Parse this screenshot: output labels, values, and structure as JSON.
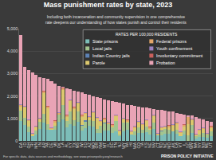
{
  "chart_data": {
    "type": "bar",
    "title": "Mass punishment rates by state, 2023",
    "subtitle": [
      "Including both incarceration and community supervision in one comprehensive",
      "rate deepens our understanding of how states punish and control their residents"
    ],
    "legend_title": "RATES PER 100,000 RESIDENTS",
    "annotations": [
      "For specific data, data sources and methodology, see www.prisonpolicy.org/research",
      "PRISON POLICY INITIATIVE"
    ],
    "categories": [
      "GA",
      "ID",
      "OH",
      "RI",
      "MN",
      "IN",
      "AR",
      "PA",
      "DE",
      "MI",
      "OK",
      "LA",
      "AL",
      "KY",
      "TX",
      "MS",
      "WI",
      "SD",
      "AZ",
      "MO",
      "OR",
      "NM",
      "MT",
      "FL",
      "SC",
      "TN",
      "NJ",
      "WY",
      "VA",
      "HI",
      "WA",
      "CO",
      "IA",
      "KS",
      "NE",
      "NV",
      "CT",
      "ND",
      "NC",
      "MD",
      "AK",
      "CA",
      "VT",
      "IL",
      "DC",
      "WV",
      "MA",
      "NY",
      "NH",
      "ME",
      "UT"
    ],
    "series": [
      {
        "name": "State prisons",
        "color": "#7cbdb8",
        "values": [
          890,
          700,
          380,
          230,
          300,
          520,
          800,
          480,
          500,
          490,
          860,
          960,
          590,
          760,
          660,
          840,
          460,
          560,
          690,
          640,
          360,
          340,
          460,
          470,
          370,
          410,
          200,
          430,
          480,
          280,
          250,
          370,
          340,
          400,
          290,
          520,
          250,
          240,
          320,
          310,
          420,
          330,
          200,
          300,
          0,
          350,
          110,
          180,
          180,
          140,
          220
        ]
      },
      {
        "name": "Local jails",
        "color": "#a3c48f",
        "values": [
          450,
          330,
          250,
          0,
          150,
          330,
          390,
          280,
          0,
          180,
          300,
          620,
          300,
          560,
          270,
          470,
          230,
          300,
          220,
          250,
          180,
          330,
          320,
          270,
          220,
          460,
          100,
          370,
          350,
          0,
          160,
          250,
          140,
          250,
          190,
          290,
          0,
          190,
          210,
          170,
          0,
          180,
          0,
          150,
          250,
          370,
          110,
          110,
          170,
          130,
          200
        ]
      },
      {
        "name": "Indian Country jails",
        "color": "#5d82b5",
        "values": [
          0,
          3,
          0,
          0,
          3,
          0,
          0,
          0,
          0,
          0,
          5,
          0,
          0,
          0,
          0,
          0,
          2,
          60,
          20,
          0,
          0,
          15,
          30,
          0,
          0,
          0,
          0,
          10,
          0,
          0,
          5,
          0,
          0,
          0,
          0,
          5,
          0,
          20,
          0,
          0,
          0,
          0,
          0,
          0,
          0,
          0,
          0,
          0,
          0,
          0,
          3
        ]
      },
      {
        "name": "Parole",
        "color": "#dcc86e",
        "values": [
          200,
          450,
          250,
          40,
          150,
          90,
          950,
          700,
          20,
          150,
          20,
          700,
          180,
          450,
          500,
          350,
          380,
          280,
          100,
          350,
          450,
          160,
          120,
          20,
          60,
          230,
          120,
          150,
          30,
          110,
          170,
          180,
          220,
          230,
          60,
          280,
          20,
          120,
          70,
          130,
          250,
          250,
          140,
          200,
          500,
          200,
          30,
          170,
          180,
          0,
          150
        ]
      },
      {
        "name": "Federal prisons",
        "color": "#e3a66a",
        "values": [
          50,
          50,
          50,
          50,
          50,
          50,
          50,
          50,
          50,
          50,
          50,
          50,
          50,
          50,
          50,
          50,
          50,
          50,
          50,
          50,
          50,
          50,
          50,
          50,
          50,
          50,
          50,
          50,
          50,
          50,
          50,
          50,
          50,
          50,
          50,
          50,
          50,
          50,
          50,
          50,
          50,
          50,
          50,
          50,
          300,
          50,
          50,
          50,
          50,
          50,
          50
        ]
      },
      {
        "name": "Youth confinement",
        "color": "#9c83c2",
        "values": [
          25,
          25,
          25,
          25,
          25,
          25,
          25,
          25,
          25,
          25,
          25,
          25,
          25,
          25,
          25,
          25,
          25,
          25,
          25,
          25,
          25,
          25,
          25,
          25,
          25,
          25,
          25,
          25,
          25,
          25,
          25,
          25,
          25,
          25,
          25,
          25,
          25,
          25,
          25,
          25,
          25,
          25,
          25,
          25,
          30,
          25,
          25,
          25,
          25,
          25,
          25
        ]
      },
      {
        "name": "Involuntary commitment",
        "color": "#c9605d",
        "values": [
          10,
          10,
          10,
          10,
          10,
          10,
          10,
          10,
          10,
          10,
          10,
          10,
          10,
          10,
          10,
          10,
          10,
          10,
          10,
          10,
          10,
          10,
          10,
          10,
          10,
          10,
          10,
          10,
          10,
          10,
          10,
          10,
          10,
          10,
          10,
          10,
          10,
          10,
          10,
          10,
          10,
          10,
          10,
          10,
          0,
          10,
          10,
          10,
          10,
          10,
          10
        ]
      },
      {
        "name": "Probation",
        "color": "#e9a3b5",
        "values": [
          3075,
          1732,
          2185,
          2695,
          2262,
          1825,
          575,
          1205,
          2045,
          1645,
          1180,
          35,
          1195,
          445,
          735,
          455,
          993,
          815,
          935,
          675,
          875,
          970,
          835,
          955,
          1045,
          565,
          1195,
          605,
          655,
          1105,
          880,
          635,
          715,
          515,
          825,
          240,
          1045,
          725,
          665,
          625,
          545,
          405,
          775,
          445,
          70,
          115,
          715,
          455,
          335,
          545,
          192
        ]
      }
    ],
    "ylim": [
      0,
      5000
    ],
    "yticks": [
      0,
      {
        "value": 1000,
        "label": "1,000"
      },
      {
        "value": 2000,
        "label": "2,000"
      },
      {
        "value": 3000,
        "label": "3,000"
      },
      {
        "value": 4000,
        "label": "4,000"
      },
      {
        "value": 5000,
        "label": "5,000"
      }
    ],
    "stacked": true,
    "grid": true,
    "legend": "upper right"
  }
}
